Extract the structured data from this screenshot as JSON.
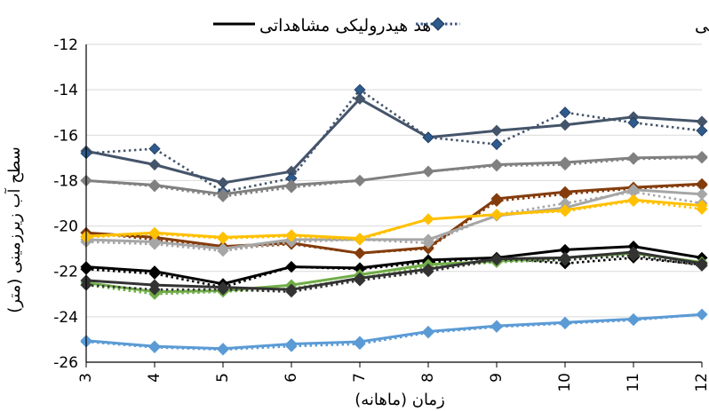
{
  "chart_data": {
    "type": "line",
    "title": "",
    "xlabel": "زمان (ماهانه)",
    "ylabel": "سطح آب زیرزمینی (متر)",
    "x": [
      3,
      4,
      5,
      6,
      7,
      8,
      9,
      10,
      11,
      12
    ],
    "x_tick_labels": [
      "3",
      "4",
      "5",
      "6",
      "7",
      "8",
      "9",
      "10",
      "11",
      "12"
    ],
    "ylim": [
      -26,
      -12
    ],
    "y_ticks": [
      -26,
      -24,
      -22,
      -20,
      -18,
      -16,
      -14,
      -12
    ],
    "y_tick_labels": [
      "-26",
      "-24",
      "-22",
      "-20",
      "-18",
      "-16",
      "-14",
      "-12"
    ],
    "grid": "horizontal",
    "legend": {
      "placement": "top",
      "entries": [
        {
          "label": "هد هیدرولیکی محاسباتی",
          "style": "dotted-diamond",
          "color": "#3a5a8c"
        },
        {
          "label": "هد هیدرولیکی مشاهداتی",
          "style": "solid",
          "color": "#000000"
        }
      ]
    },
    "series": [
      {
        "color": "#44546a",
        "style": "solid",
        "values": [
          -16.7,
          -17.3,
          -18.1,
          -17.6,
          -14.4,
          -16.1,
          -15.8,
          -15.55,
          -15.2,
          -15.4
        ]
      },
      {
        "color": "#44546a",
        "style": "dotted",
        "marker_color": "#2e5a8c",
        "values": [
          -16.8,
          -16.6,
          -18.5,
          -17.9,
          -14.0,
          -16.1,
          -16.4,
          -15.0,
          -15.45,
          -15.8
        ]
      },
      {
        "color": "#808080",
        "style": "solid",
        "values": [
          -18.0,
          -18.2,
          -18.6,
          -18.2,
          -18.0,
          -17.6,
          -17.3,
          -17.2,
          -17.0,
          -16.95
        ]
      },
      {
        "color": "#808080",
        "style": "dotted",
        "values": [
          -18.0,
          -18.25,
          -18.7,
          -18.3,
          -18.0,
          -17.6,
          -17.35,
          -17.3,
          -17.05,
          -17.0
        ]
      },
      {
        "color": "#843c0c",
        "style": "solid",
        "values": [
          -20.3,
          -20.5,
          -20.9,
          -20.75,
          -21.2,
          -20.95,
          -18.8,
          -18.5,
          -18.3,
          -18.15
        ]
      },
      {
        "color": "#843c0c",
        "style": "dotted",
        "values": [
          -20.3,
          -20.6,
          -21.0,
          -20.8,
          -21.2,
          -21.0,
          -18.9,
          -18.6,
          -18.35,
          -18.2
        ]
      },
      {
        "color": "#a6a6a6",
        "style": "solid",
        "values": [
          -20.6,
          -20.7,
          -21.0,
          -20.6,
          -20.6,
          -20.6,
          -19.55,
          -19.2,
          -18.4,
          -18.6
        ]
      },
      {
        "color": "#a6a6a6",
        "style": "dotted",
        "values": [
          -20.7,
          -20.8,
          -21.1,
          -20.7,
          -20.6,
          -20.75,
          -19.5,
          -19.0,
          -18.5,
          -19.0
        ]
      },
      {
        "color": "#ffc000",
        "style": "solid",
        "values": [
          -20.45,
          -20.3,
          -20.5,
          -20.4,
          -20.55,
          -19.7,
          -19.5,
          -19.3,
          -18.85,
          -19.1
        ]
      },
      {
        "color": "#ffc000",
        "style": "dotted",
        "values": [
          -20.5,
          -20.35,
          -20.55,
          -20.45,
          -20.6,
          -19.7,
          -19.5,
          -19.35,
          -18.9,
          -19.25
        ]
      },
      {
        "color": "#000000",
        "style": "solid",
        "values": [
          -21.8,
          -22.0,
          -22.55,
          -21.8,
          -21.85,
          -21.5,
          -21.4,
          -21.05,
          -20.9,
          -21.4
        ]
      },
      {
        "color": "#000000",
        "style": "dotted",
        "values": [
          -21.9,
          -22.1,
          -22.7,
          -21.8,
          -21.9,
          -21.6,
          -21.4,
          -21.65,
          -21.4,
          -21.7
        ]
      },
      {
        "color": "#70ad47",
        "style": "solid",
        "values": [
          -22.5,
          -22.9,
          -22.85,
          -22.6,
          -22.15,
          -21.7,
          -21.55,
          -21.4,
          -21.2,
          -21.6
        ]
      },
      {
        "color": "#70ad47",
        "style": "dotted",
        "values": [
          -22.6,
          -23.0,
          -22.9,
          -22.75,
          -22.3,
          -21.8,
          -21.6,
          -21.5,
          -21.3,
          -21.7
        ]
      },
      {
        "color": "#333333",
        "style": "solid",
        "values": [
          -22.4,
          -22.6,
          -22.7,
          -22.8,
          -22.3,
          -21.9,
          -21.45,
          -21.4,
          -21.15,
          -21.65
        ]
      },
      {
        "color": "#333333",
        "style": "dotted",
        "values": [
          -22.6,
          -22.8,
          -22.8,
          -22.9,
          -22.4,
          -22.0,
          -21.5,
          -21.5,
          -21.3,
          -21.75
        ]
      },
      {
        "color": "#5b9bd5",
        "style": "solid",
        "values": [
          -25.05,
          -25.3,
          -25.4,
          -25.2,
          -25.1,
          -24.65,
          -24.4,
          -24.25,
          -24.1,
          -23.9
        ]
      },
      {
        "color": "#5b9bd5",
        "style": "dotted",
        "values": [
          -25.1,
          -25.35,
          -25.45,
          -25.3,
          -25.2,
          -24.7,
          -24.45,
          -24.3,
          -24.15,
          -23.9
        ]
      }
    ]
  }
}
